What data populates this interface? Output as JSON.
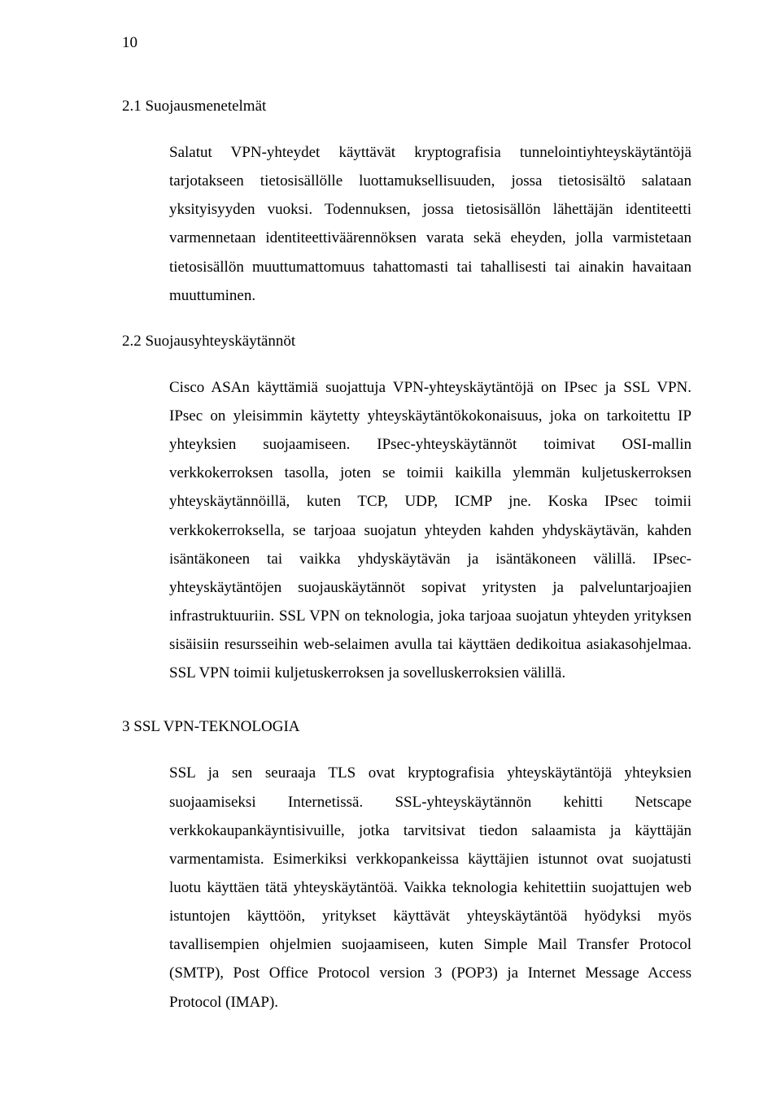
{
  "pageNumber": "10",
  "section1": {
    "heading": "2.1 Suojausmenetelmät",
    "para": "Salatut VPN-yhteydet käyttävät kryptografisia tunnelointiyhteyskäytäntöjä tarjotakseen tietosisällölle luottamuksellisuuden, jossa tietosisältö salataan yksityisyyden vuoksi. Todennuksen, jossa tietosisällön lähettäjän identiteetti varmennetaan identiteettiväärennöksen varata sekä eheyden, jolla varmistetaan tietosisällön muuttumattomuus tahattomasti tai tahallisesti tai ainakin havaitaan muuttuminen."
  },
  "section2": {
    "heading": "2.2 Suojausyhteyskäytännöt",
    "para": "Cisco ASAn käyttämiä suojattuja VPN-yhteyskäytäntöjä on IPsec ja SSL VPN. IPsec on yleisimmin käytetty yhteyskäytäntökokonaisuus, joka on tarkoitettu IP yhteyksien suojaamiseen. IPsec-yhteyskäytännöt toimivat OSI-mallin verkkokerroksen tasolla, joten se toimii kaikilla ylemmän kuljetuskerroksen yhteyskäytännöillä, kuten TCP, UDP, ICMP jne. Koska IPsec toimii verkkokerroksella, se tarjoaa suojatun yhteyden kahden yhdyskäytävän, kahden isäntäkoneen tai vaikka yhdyskäytävän ja isäntäkoneen välillä. IPsec-yhteyskäytäntöjen suojauskäytännöt sopivat yritysten ja palveluntarjoajien infrastruktuuriin. SSL VPN on teknologia, joka tarjoaa suojatun yhteyden yrityksen sisäisiin resursseihin web-selaimen avulla tai käyttäen dedikoitua asiakasohjelmaa. SSL VPN toimii kuljetuskerroksen ja sovelluskerroksien välillä."
  },
  "chapter3": {
    "heading": "3 SSL VPN-TEKNOLOGIA",
    "para": "SSL ja sen seuraaja TLS ovat kryptografisia yhteyskäytäntöjä yhteyksien suojaamiseksi Internetissä. SSL-yhteyskäytännön kehitti Netscape verkkokaupankäyntisivuille, jotka tarvitsivat tiedon salaamista ja käyttäjän varmentamista. Esimerkiksi verkkopankeissa käyttäjien istunnot ovat suojatusti luotu käyttäen tätä yhteyskäytäntöä. Vaikka teknologia kehitettiin suojattujen web istuntojen käyttöön, yritykset käyttävät yhteyskäytäntöä hyödyksi myös tavallisempien ohjelmien suojaamiseen, kuten Simple Mail Transfer Protocol (SMTP), Post Office Protocol version 3 (POP3) ja Internet Message Access Protocol (IMAP)."
  }
}
